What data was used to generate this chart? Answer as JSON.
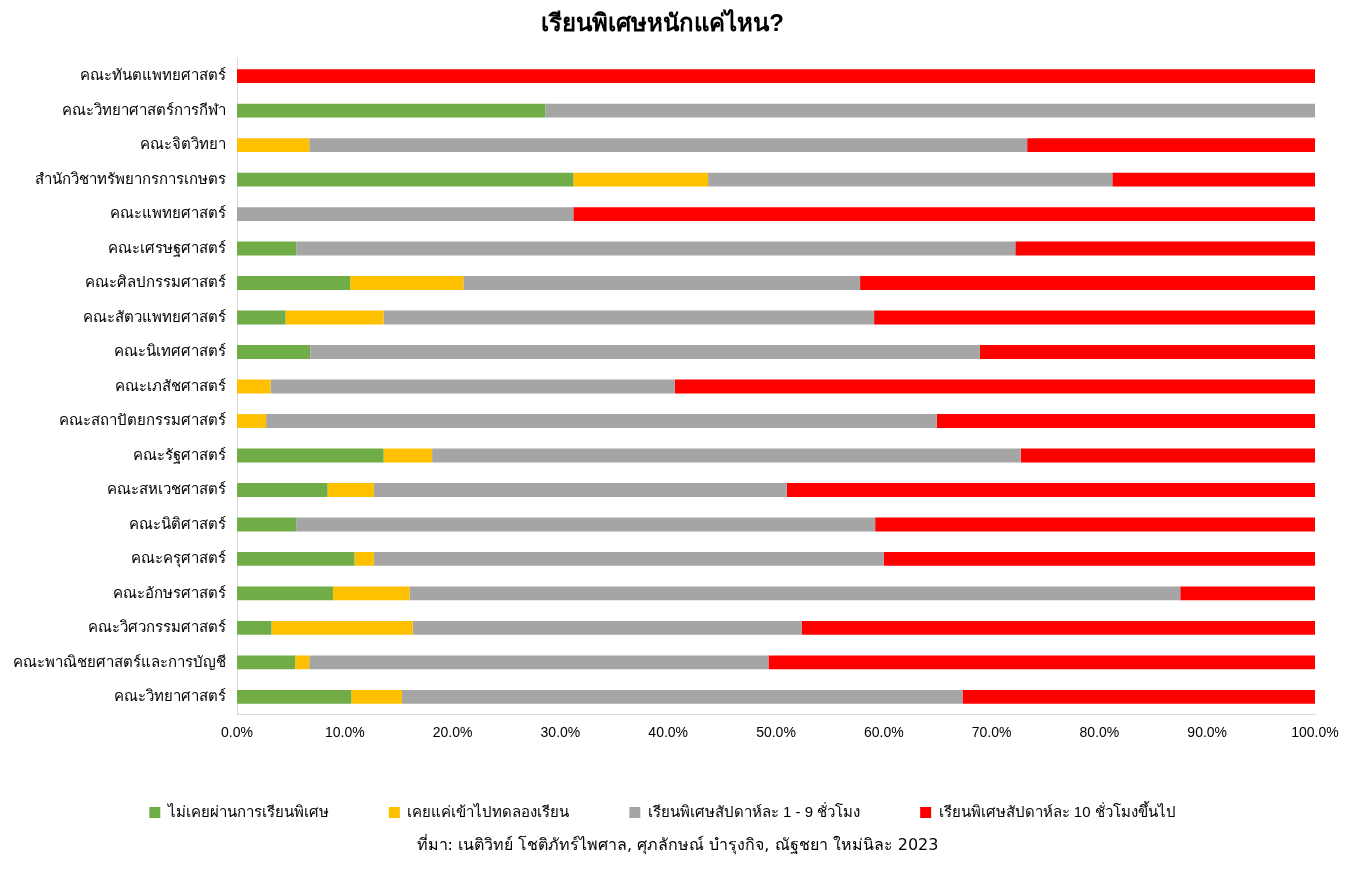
{
  "chart_data": {
    "type": "bar",
    "orientation": "horizontal",
    "stacked": true,
    "title": "เรียนพิเศษหนักแค่ไหน?",
    "categories": [
      "คณะทันตแพทยศาสตร์",
      "คณะวิทยาศาสตร์การกีฬา",
      "คณะจิตวิทยา",
      "สำนักวิชาทรัพยากรการเกษตร",
      "คณะแพทยศาสตร์",
      "คณะเศรษฐศาสตร์",
      "คณะศิลปกรรมศาสตร์",
      "คณะสัตวแพทยศาสตร์",
      "คณะนิเทศศาสตร์",
      "คณะเภสัชศาสตร์",
      "คณะสถาปัตยกรรมศาสตร์",
      "คณะรัฐศาสตร์",
      "คณะสหเวชศาสตร์",
      "คณะนิติศาสตร์",
      "คณะครุศาสตร์",
      "คณะอักษรศาสตร์",
      "คณะวิศวกรรมศาสตร์",
      "คณะพาณิชยศาสตร์และการบัญชี",
      "คณะวิทยาศาสตร์"
    ],
    "series": [
      {
        "name": "ไม่เคยผ่านการเรียนพิเศษ",
        "color": "#70ad47",
        "values": [
          0,
          28.6,
          0,
          31.2,
          0,
          5.5,
          10.5,
          4.5,
          6.8,
          0,
          0,
          13.6,
          8.4,
          5.5,
          10.9,
          8.9,
          3.2,
          5.4,
          10.6
        ]
      },
      {
        "name": "เคยแค่เข้าไปทดลองเรียน",
        "color": "#ffc000",
        "values": [
          0,
          0,
          6.7,
          12.5,
          0,
          0,
          10.5,
          9.1,
          0,
          3.1,
          2.7,
          4.5,
          4.3,
          0,
          1.8,
          7.1,
          13.1,
          1.3,
          4.7
        ]
      },
      {
        "name": "เรียนพิเศษสัปดาห์ละ 1 - 9 ชั่วโมง",
        "color": "#a5a5a5",
        "values": [
          0,
          71.4,
          66.6,
          37.5,
          31.2,
          66.7,
          36.8,
          45.5,
          62.1,
          37.5,
          62.2,
          54.6,
          38.3,
          53.7,
          47.3,
          71.5,
          36.1,
          42.6,
          52.0
        ]
      },
      {
        "name": "เรียนพิเศษสัปดาห์ละ 10 ชั่วโมงขึ้นไป",
        "color": "#ff0000",
        "values": [
          100,
          0,
          26.7,
          18.8,
          68.8,
          27.8,
          42.2,
          40.9,
          31.1,
          59.4,
          35.1,
          27.3,
          49.0,
          40.8,
          40.0,
          12.5,
          47.6,
          50.7,
          32.7
        ]
      }
    ],
    "xlim": [
      0,
      100
    ],
    "xticks": [
      {
        "value": 0,
        "label": "0.0%"
      },
      {
        "value": 10,
        "label": "10.0%"
      },
      {
        "value": 20,
        "label": "20.0%"
      },
      {
        "value": 30,
        "label": "30.0%"
      },
      {
        "value": 40,
        "label": "40.0%"
      },
      {
        "value": 50,
        "label": "50.0%"
      },
      {
        "value": 60,
        "label": "60.0%"
      },
      {
        "value": 70,
        "label": "70.0%"
      },
      {
        "value": 80,
        "label": "80.0%"
      },
      {
        "value": 90,
        "label": "90.0%"
      },
      {
        "value": 100,
        "label": "100.0%"
      }
    ],
    "grid": false,
    "legend": "bottom",
    "annotations": [
      "ที่มา: เนติวิทย์ โชติภัทร์ไพศาล, ศุภลักษณ์ บำรุงกิจ, ณัฐชยา ใหม่นิละ 2023"
    ]
  }
}
